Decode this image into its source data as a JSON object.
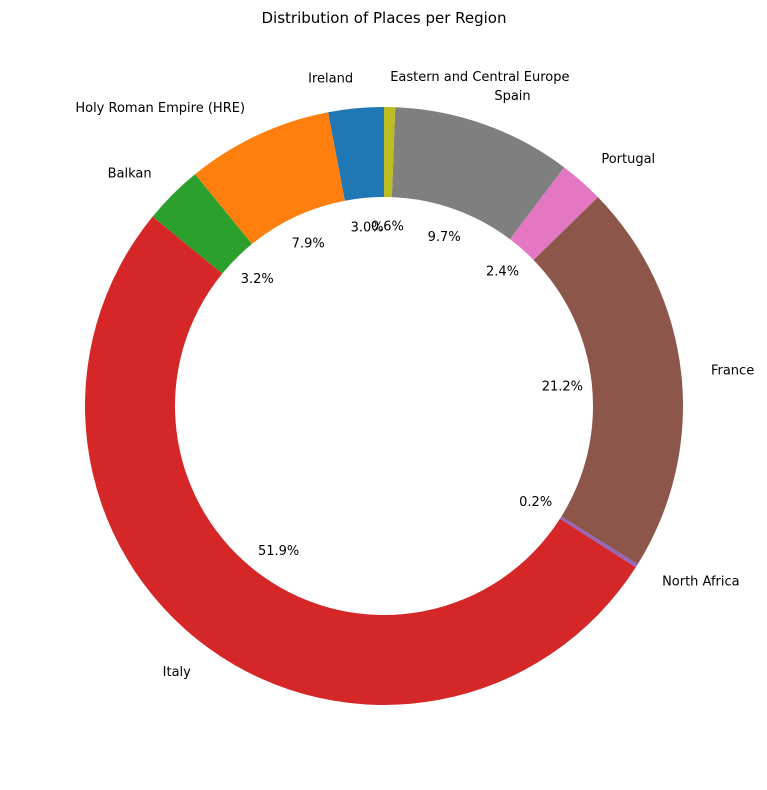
{
  "chart_data": {
    "type": "pie",
    "title": "Distribution of Places per Region",
    "donut": true,
    "slices": [
      {
        "label": "Ireland",
        "pct_label": "3.0%",
        "value": 3.0,
        "color": "#1f77b4"
      },
      {
        "label": "Holy Roman Empire (HRE)",
        "pct_label": "7.9%",
        "value": 7.9,
        "color": "#ff7f0e"
      },
      {
        "label": "Balkan",
        "pct_label": "3.2%",
        "value": 3.2,
        "color": "#2ca02c"
      },
      {
        "label": "Italy",
        "pct_label": "51.9%",
        "value": 51.9,
        "color": "#d62728"
      },
      {
        "label": "North Africa",
        "pct_label": "0.2%",
        "value": 0.2,
        "color": "#9467bd"
      },
      {
        "label": "France",
        "pct_label": "21.2%",
        "value": 21.2,
        "color": "#8c564b"
      },
      {
        "label": "Portugal",
        "pct_label": "2.4%",
        "value": 2.4,
        "color": "#e377c2"
      },
      {
        "label": "Spain",
        "pct_label": "9.7%",
        "value": 9.7,
        "color": "#7f7f7f"
      },
      {
        "label": "Eastern and Central Europe",
        "pct_label": "0.6%",
        "value": 0.6,
        "color": "#bcbd22"
      }
    ]
  }
}
